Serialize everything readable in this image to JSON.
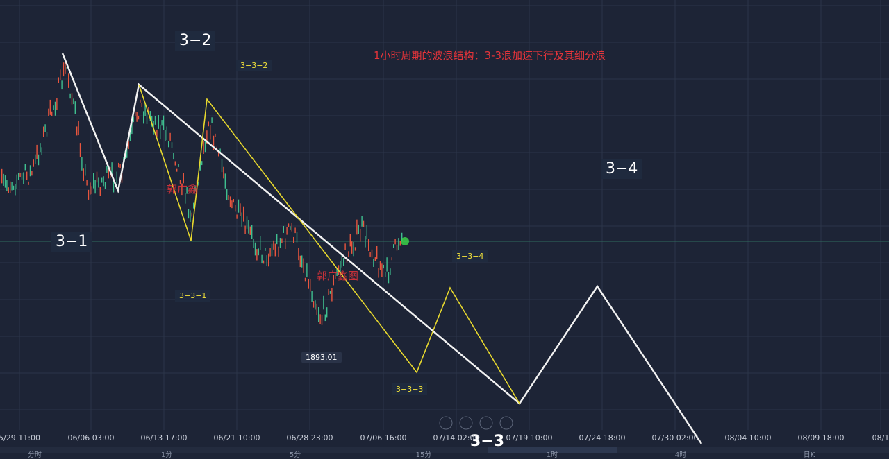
{
  "title": "1小时周期的波浪结构：3-3浪加速下行及其细分浪",
  "wave_labels": {
    "w31": "3−1",
    "w32": "3−2",
    "w34": "3−4",
    "w331": "3−3−1",
    "w332": "3−3−2",
    "w333": "3−3−3",
    "w334": "3−3−4",
    "w33": "3−3"
  },
  "price_label": "1893.01",
  "watermarks": [
    "郭广鑫",
    "郭广鑫图"
  ],
  "x_axis_labels": [
    "5/29 11:00",
    "06/06 03:00",
    "06/13 17:00",
    "06/21 10:00",
    "06/28 23:00",
    "07/06 16:00",
    "07/14 02:00",
    "07/19 10:00",
    "07/24 18:00",
    "07/30 02:00",
    "08/04 10:00",
    "08/09 18:00",
    "08/1"
  ],
  "timeframes": [
    "分时",
    "1分",
    "5分",
    "15分",
    "1时",
    "4时",
    "日K"
  ]
}
